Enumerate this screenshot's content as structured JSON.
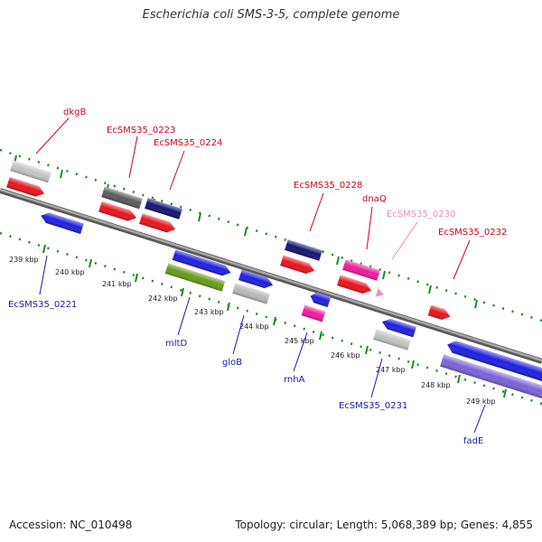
{
  "title": "Escherichia coli SMS-3-5, complete genome",
  "footer": {
    "accession": "Accession: NC_010498",
    "summary": "Topology: circular; Length: 5,068,389 bp; Genes: 4,855"
  },
  "colors": {
    "forward_label": "#d0021b",
    "reverse_label": "#1a1aa8",
    "pseudo_label": "#f08cc0",
    "backbone": "#8a8a8a",
    "ticks": "#1f8a1f"
  },
  "scale": {
    "unit": "kbp",
    "labels": [
      "239 kbp",
      "240 kbp",
      "241 kbp",
      "242 kbp",
      "243 kbp",
      "244 kbp",
      "245 kbp",
      "246 kbp",
      "247 kbp",
      "248 kbp",
      "249 kbp"
    ]
  },
  "genes_forward": [
    {
      "label": "dkgB",
      "color": "#d0021b"
    },
    {
      "label": "EcSMS35_0223",
      "color": "#d0021b"
    },
    {
      "label": "EcSMS35_0224",
      "color": "#d0021b"
    },
    {
      "label": "EcSMS35_0228",
      "color": "#d0021b"
    },
    {
      "label": "dnaQ",
      "color": "#d0021b"
    },
    {
      "label": "EcSMS35_0230",
      "color": "#f08cc0"
    },
    {
      "label": "EcSMS35_0232",
      "color": "#d0021b"
    }
  ],
  "genes_reverse": [
    {
      "label": "EcSMS35_0221",
      "color": "#1a1aa8"
    },
    {
      "label": "mltD",
      "color": "#1a1aa8"
    },
    {
      "label": "gloB",
      "color": "#1a1aa8"
    },
    {
      "label": "rnhA",
      "color": "#1a1aa8"
    },
    {
      "label": "EcSMS35_0231",
      "color": "#1a1aa8"
    },
    {
      "label": "fadE",
      "color": "#1a1aa8"
    }
  ]
}
